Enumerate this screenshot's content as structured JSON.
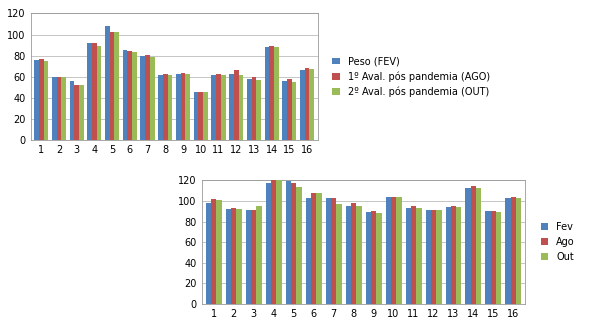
{
  "chart_data": [
    {
      "type": "bar",
      "categories": [
        "1",
        "2",
        "3",
        "4",
        "5",
        "6",
        "7",
        "8",
        "9",
        "10",
        "11",
        "12",
        "13",
        "14",
        "15",
        "16"
      ],
      "series": [
        {
          "name": "Peso (FEV)",
          "color": "#4f81bd",
          "values": [
            76,
            60,
            56,
            92,
            108,
            85,
            80,
            62,
            63,
            46,
            62,
            63,
            58,
            88,
            56,
            66
          ]
        },
        {
          "name": "1º Aval. pós pandemia (AGO)",
          "color": "#c0504d",
          "values": [
            77,
            60,
            52,
            92,
            102,
            84,
            81,
            63,
            64,
            46,
            63,
            66,
            60,
            89,
            58,
            68
          ]
        },
        {
          "name": "2º Aval. pós pandemia (OUT)",
          "color": "#9bbb59",
          "values": [
            75,
            60,
            52,
            89,
            102,
            83,
            79,
            62,
            63,
            46,
            62,
            62,
            57,
            88,
            55,
            67
          ]
        }
      ],
      "ylim": [
        0,
        120
      ],
      "yticks": [
        0,
        20,
        40,
        60,
        80,
        100,
        120
      ],
      "grid": true,
      "legend": "center left"
    },
    {
      "type": "bar",
      "categories": [
        "1",
        "2",
        "3",
        "4",
        "5",
        "6",
        "7",
        "8",
        "9",
        "10",
        "11",
        "12",
        "13",
        "14",
        "15",
        "16"
      ],
      "series": [
        {
          "name": "Fev",
          "color": "#4f81bd",
          "values": [
            98,
            92,
            91,
            117,
            119,
            103,
            103,
            95,
            89,
            104,
            93,
            91,
            94,
            113,
            90,
            103
          ]
        },
        {
          "name": "Ago",
          "color": "#c0504d",
          "values": [
            102,
            93,
            91,
            120,
            117,
            108,
            103,
            98,
            90,
            104,
            95,
            91,
            95,
            115,
            90,
            104
          ]
        },
        {
          "name": "Out",
          "color": "#9bbb59",
          "values": [
            101,
            92,
            95,
            120,
            114,
            108,
            97,
            95,
            88,
            104,
            93,
            91,
            94,
            113,
            89,
            103
          ]
        }
      ],
      "ylim": [
        0,
        120
      ],
      "yticks": [
        0,
        20,
        40,
        60,
        80,
        100,
        120
      ],
      "grid": true,
      "legend": "center left"
    }
  ]
}
